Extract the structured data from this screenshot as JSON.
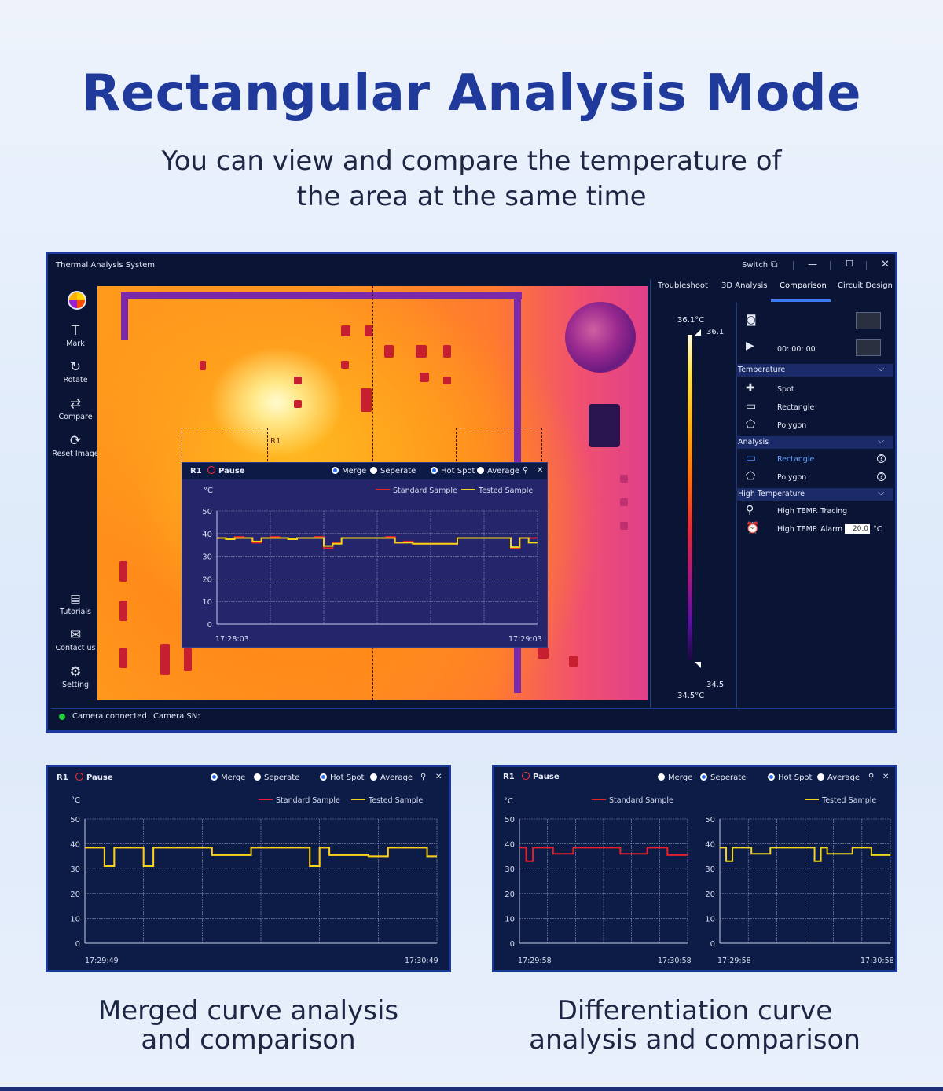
{
  "headline": "Rectangular Analysis Mode",
  "subline": [
    "You can view and compare the temperature of",
    "the area at the same time"
  ],
  "captions": {
    "left": [
      "Merged curve analysis",
      "and comparison"
    ],
    "right": [
      "Differentiation curve",
      "analysis and comparison"
    ]
  },
  "colors": {
    "standard": "#e8202a",
    "tested": "#f2d51a",
    "accent": "#1f3a9a"
  },
  "window": {
    "title": "Thermal Analysis System",
    "switch_label": "Switch",
    "sidebar": [
      {
        "label": "Mark",
        "icon": "text-mark-icon"
      },
      {
        "label": "Rotate",
        "icon": "rotate-icon"
      },
      {
        "label": "Compare",
        "icon": "compare-icon"
      },
      {
        "label": "Reset Image",
        "icon": "reset-icon"
      },
      {
        "label": "Tutorials",
        "icon": "book-icon"
      },
      {
        "label": "Contact us",
        "icon": "mail-icon"
      },
      {
        "label": "Setting",
        "icon": "gear-icon"
      }
    ],
    "roi_label": "R1",
    "tabs": [
      "Troubleshoot",
      "3D Analysis",
      "Comparison",
      "Circuit Design"
    ],
    "scale": {
      "max": "36.1°C",
      "max_short": "36.1",
      "min_short": "34.5",
      "min": "34.5°C"
    },
    "timer": "00:  00:  00",
    "sections": {
      "temperature": {
        "title": "Temperature",
        "items": [
          "Spot",
          "Rectangle",
          "Polygon"
        ]
      },
      "analysis": {
        "title": "Analysis",
        "items": [
          "Rectangle",
          "Polygon"
        ]
      },
      "high": {
        "title": "High Temperature",
        "items": [
          "High TEMP. Tracing",
          "High TEMP. Alarm"
        ],
        "alarm_value": "20.0",
        "alarm_unit": "°C"
      }
    },
    "status": {
      "connected": "Camera connected",
      "sn": "Camera SN:"
    }
  },
  "panel_common": {
    "roi": "R1",
    "pause": "Pause",
    "merge": "Merge",
    "seperate": "Seperate",
    "hotspot": "Hot Spot",
    "average": "Average",
    "legend_standard": "Standard Sample",
    "legend_tested": "Tested Sample",
    "unit": "°C",
    "ticks": [
      "50",
      "40",
      "30",
      "20",
      "10",
      "0"
    ]
  },
  "chart_data": [
    {
      "type": "line",
      "title": "",
      "ylim": [
        0,
        50
      ],
      "x_start": "17:28:03",
      "x_end": "17:29:03",
      "series": [
        {
          "name": "Standard Sample",
          "color": "#e8202a",
          "values": [
            38,
            38,
            37.5,
            38.5,
            38,
            36,
            38,
            38.5,
            38,
            37.5,
            38,
            38,
            38.5,
            33.5,
            36,
            38,
            38,
            38,
            38,
            38,
            38.5,
            36,
            36.5,
            35.5,
            35.5,
            35.5,
            35.5,
            35.5,
            38,
            38,
            38,
            38,
            38,
            38,
            33.5,
            38,
            38
          ]
        },
        {
          "name": "Tested Sample",
          "color": "#f2d51a",
          "values": [
            38,
            38,
            37.5,
            38,
            38,
            36.5,
            38,
            38,
            38,
            37.5,
            38,
            38,
            38,
            34.5,
            35.5,
            38,
            38,
            38,
            38,
            38,
            38,
            36,
            36,
            35.5,
            35.5,
            35.5,
            35.5,
            35.5,
            38,
            38,
            38,
            38,
            38,
            38,
            34,
            38,
            36
          ]
        }
      ]
    },
    {
      "type": "line",
      "title": "",
      "ylim": [
        0,
        50
      ],
      "x_start": "17:29:49",
      "x_end": "17:30:49",
      "series": [
        {
          "name": "Standard Sample",
          "color": "#e8202a",
          "values": [
            38.5,
            38.5,
            38.5,
            31,
            38.5,
            38.5,
            38.5,
            31,
            38.5,
            38.5,
            38.5,
            38.5,
            38.5,
            38.5,
            35.5,
            35.5,
            35.5,
            35.5,
            38.5,
            38.5,
            38.5,
            38.5,
            38.5,
            38.5,
            31,
            38.5,
            35.5,
            35.5,
            35.5,
            35.5,
            35,
            35,
            38.5,
            38.5,
            38.5,
            38.5,
            35
          ]
        },
        {
          "name": "Tested Sample",
          "color": "#f2d51a",
          "values": [
            38.5,
            38.5,
            38.5,
            31,
            38.5,
            38.5,
            38.5,
            31,
            38.5,
            38.5,
            38.5,
            38.5,
            38.5,
            38.5,
            35.5,
            35.5,
            35.5,
            35.5,
            38.5,
            38.5,
            38.5,
            38.5,
            38.5,
            38.5,
            31,
            38.5,
            35.5,
            35.5,
            35.5,
            35.5,
            35,
            35,
            38.5,
            38.5,
            38.5,
            38.5,
            35
          ]
        }
      ]
    },
    {
      "type": "line",
      "title": "",
      "ylim": [
        0,
        50
      ],
      "x_start": "17:29:58",
      "x_end": "17:30:58",
      "series": [
        {
          "name": "Standard Sample",
          "color": "#e8202a",
          "values": [
            38.5,
            38.5,
            33,
            38.5,
            38.5,
            38.5,
            36,
            36,
            36,
            38.5,
            38.5,
            38.5,
            38.5,
            38.5,
            38.5,
            38.5,
            36,
            36,
            36,
            36,
            38.5,
            38.5,
            38.5,
            35.5,
            35.5,
            35.5
          ]
        }
      ]
    },
    {
      "type": "line",
      "title": "",
      "ylim": [
        0,
        50
      ],
      "x_start": "17:29:58",
      "x_end": "17:30:58",
      "series": [
        {
          "name": "Tested Sample",
          "color": "#f2d51a",
          "values": [
            38.5,
            38.5,
            33,
            38.5,
            38.5,
            38.5,
            36,
            36,
            36,
            38.5,
            38.5,
            38.5,
            38.5,
            38.5,
            38.5,
            38.5,
            33,
            38.5,
            36,
            36,
            36,
            36,
            38.5,
            38.5,
            38.5,
            35.5,
            35.5,
            35.5
          ]
        }
      ]
    }
  ]
}
